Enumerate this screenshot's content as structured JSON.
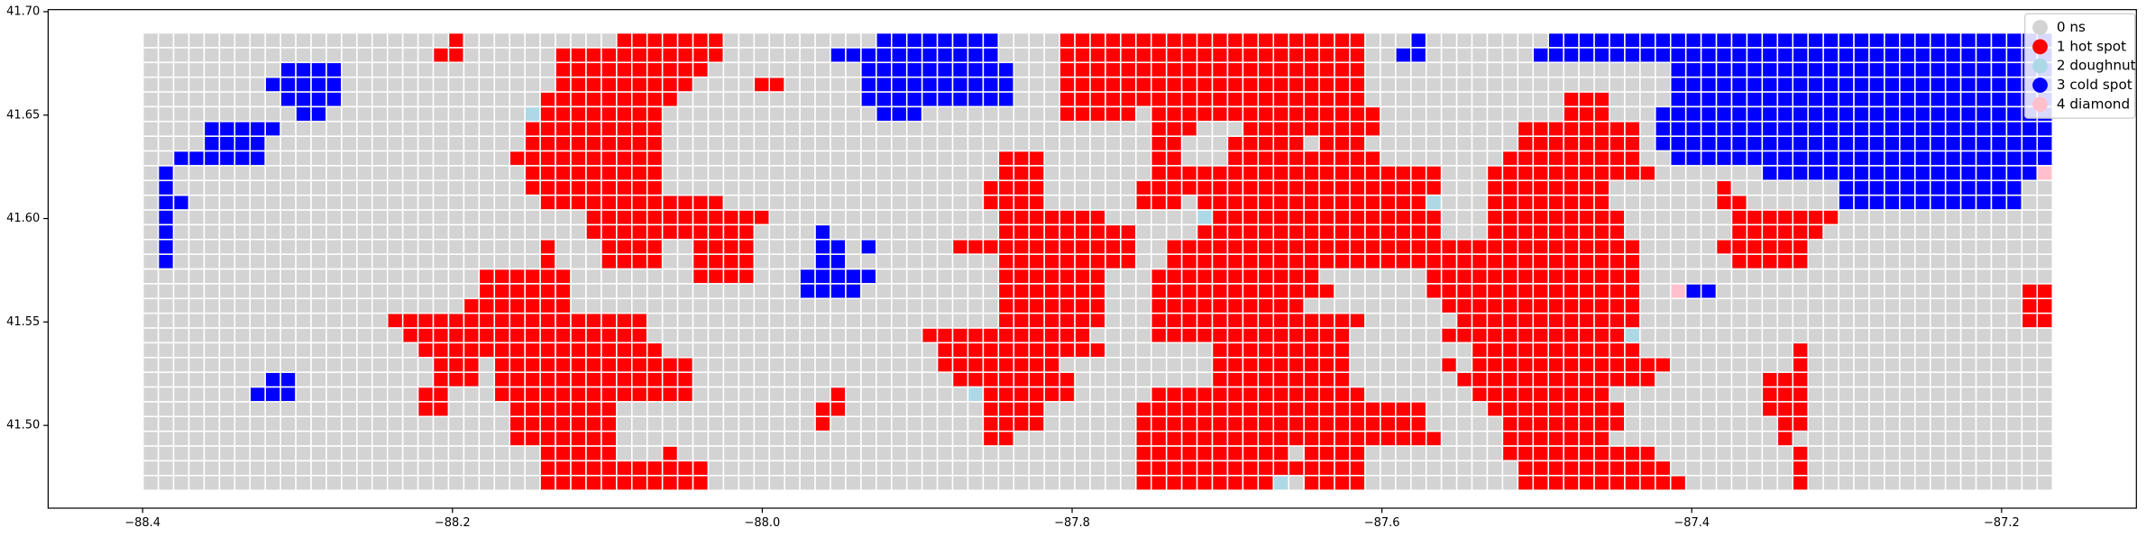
{
  "chart_data": {
    "type": "grid_map",
    "xlim": [
      -88.461,
      -87.113
    ],
    "ylim": [
      41.46,
      41.701
    ],
    "xticks": [
      {
        "value": -88.4,
        "label": "−88.4"
      },
      {
        "value": -88.2,
        "label": "−88.2"
      },
      {
        "value": -88.0,
        "label": "−88.0"
      },
      {
        "value": -87.8,
        "label": "−87.8"
      },
      {
        "value": -87.6,
        "label": "−87.6"
      },
      {
        "value": -87.4,
        "label": "−87.4"
      },
      {
        "value": -87.2,
        "label": "−87.2"
      }
    ],
    "yticks": [
      {
        "value": 41.5,
        "label": "41.50"
      },
      41.55,
      {
        "value": 41.6,
        "label": "41.60"
      },
      41.65,
      {
        "value": 41.7,
        "label": "41.70"
      }
    ],
    "legend": "upper right",
    "series": [
      {
        "name": "0 ns",
        "color": "#d3d3d3"
      },
      {
        "name": "1 hot spot",
        "color": "#ff0000"
      },
      {
        "name": "2 doughnut",
        "color": "#add8e6"
      },
      {
        "name": "3 cold spot",
        "color": "#0000ff"
      },
      {
        "name": "4 diamond",
        "color": "#ffc0cb"
      }
    ],
    "cells": [
      "00000000000000000000100000000001111111000000000033333333000011111111111111111111000300000000333333333333333333333333333333333",
      "00000000000000000001100000011111111111000000033333333333000011111111111111111111003300000003333333333333333333333333333333333",
      "00000000033330000000000000011111111110000000000333333333300011111111111111111111000000000000000000003333333333333333333333333",
      "00000000333330000000000000011111111100001100000333333333300011111111111111111111000000000000000000003333333333333333333333333",
      "00000000033330000000000000111111111000000000000333333333300011111111111111111111000000000000011100003333333333333333333333333",
      "00000000003300000000000002111111110000000000000033300000000011111011111111111111100000000000011100033333333333333333333333333",
      "00003333300000000000000001111111110000000000000000000000000000000011100011111111100000000011111111033333333333333333333333333",
      "00003333000000000000000001111111110000000000000000000000000000000011000111110111000000000011111111033333333333333333333333333",
      "00333333000000000000000011111111110000000000000000000000111000000011000111111111100000000111111111003333333333333333333333333",
      "03000000000000000000000001111111110000000000000000000000111000000011111111111111111110001111111111100000003333333333333333334",
      "03000000000000000000000001111111110000000000000000000001111000000111111111111111111110001111111100000001000000033333333333300",
      "03300000000000000000000000111111111111000000000000000001111000000111011111111111111120001111111100000001100000033333333333300",
      "03000000000000000000000000000111111111111000000000000000111111100000021111111111111110001111111110000000111111100000000000000",
      "03000000000000000000000000000111111111110000300000000000111111111000011111111111111110001111111110000000111111000000000000000",
      "03000000000000000000000000100011110011110000330300000111111111111001111111111111111111111111111111000001111110000000000000000",
      "03000000000000000000000000100011110011110000330000000000111111111001111111111111111111111111111111000000111110000000000000000",
      "00000000000000000000001111110000000011110003333300000000111111100011111111111000000011111111111111000000000000000000000000000",
      "00000000000000000000001111110000000000000003333000000000111111100011111111111100000011111111111111004330000000000000000000011",
      "00000000000000000000011111110000000000000000000000000000111111100011111111110000000001111111111111000000000000000000000000011",
      "00000000000000001111111111111111100000000000000000000000111111100011111111111111000000111111111111000000000000000000000000011",
      "00000000000000000111111111111111100000000000000000011111111111000011111111111110000001111111111112000000000000000000000000000",
      "00000000000000000011111111111111110000000000000000001111111111100000001111111110000000011111111111000000000010000000000000000",
      "00000000000000000001110111111111111100000000000000001111111100000000001111111110000001011111111111110000000010000000000000000",
      "00000000330000000001110111111111111100000000000000000111111110000000001111111110000000111111111111100000001110000000000000000",
      "00000003330000000011000111111111111100000000010000000021111110000011111111111111000000011111111100000000001110000000000000000",
      "00000000000000000011000011111110000000000000110000000001111000000111111111111111111100001111111110000000001110000000000000000",
      "00000000000000000000000011111110000000000000100000000001111000000111111111111111111100000111111110000000000110000000000000000",
      "00000000000000000000000011111110000000000000000000000001100000000111111111111111111110000111111100000000000100000000000000000",
      "00000000000000000000000000111110001000000000000000000000000000000111111111101111000000000111111111100000000010000000000000000",
      "00000000000000000000000000111111111110000000000000000000000000000111111111111111000000000011111111110000000010000000000000000",
      "00000000000000000000000000111111111110000000000000000000000000000111111111201111000000000011111111111000000010000000000000000"
    ]
  }
}
